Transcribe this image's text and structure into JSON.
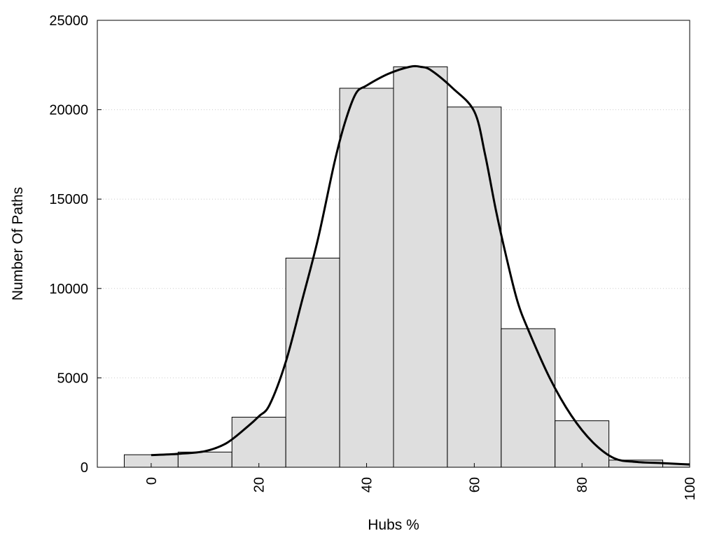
{
  "chart_data": {
    "type": "bar",
    "xlabel": "Hubs %",
    "ylabel": "Number Of Paths",
    "xlim": [
      -10,
      100
    ],
    "ylim": [
      0,
      25000
    ],
    "bin_width": 10,
    "grid": true,
    "bar_color": "#dedede",
    "line_color": "#000000",
    "x_ticks": [
      0,
      20,
      40,
      60,
      80,
      100
    ],
    "x_tick_labels": [
      "0",
      "20",
      "40",
      "60",
      "80",
      "100"
    ],
    "y_ticks": [
      0,
      5000,
      10000,
      15000,
      20000,
      25000
    ],
    "y_tick_labels": [
      "0",
      "5000",
      "10000",
      "15000",
      "20000",
      "25000"
    ],
    "series": [
      {
        "type": "bar",
        "x": [
          0,
          10,
          20,
          30,
          40,
          50,
          60,
          70,
          80,
          90,
          100
        ],
        "values": [
          700,
          850,
          2800,
          11700,
          21200,
          22400,
          20150,
          7750,
          2600,
          400,
          200
        ]
      },
      {
        "type": "line",
        "x": [
          0,
          5,
          10,
          14,
          18,
          20,
          22,
          25,
          28,
          31,
          34,
          36,
          38,
          40,
          44,
          48,
          50,
          52,
          56,
          60,
          62,
          64,
          66,
          68,
          70,
          74,
          78,
          82,
          86,
          90,
          95,
          100
        ],
        "y": [
          680,
          750,
          900,
          1350,
          2300,
          2850,
          3500,
          5900,
          9300,
          12800,
          17000,
          19300,
          20900,
          21350,
          22000,
          22400,
          22400,
          22200,
          21200,
          19900,
          17500,
          14400,
          11700,
          9300,
          7700,
          5000,
          2900,
          1400,
          500,
          300,
          230,
          150
        ]
      }
    ]
  }
}
